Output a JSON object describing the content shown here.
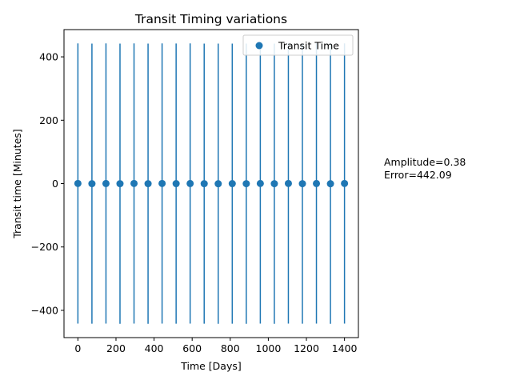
{
  "chart_data": {
    "type": "scatter",
    "title": "Transit Timing variations",
    "xlabel": "Time [Days]",
    "ylabel": "Transit time [Minutes]",
    "xlim": [
      -73,
      1473
    ],
    "ylim": [
      -486,
      486
    ],
    "xticks": [
      0,
      200,
      400,
      600,
      800,
      1000,
      1200,
      1400
    ],
    "yticks": [
      -400,
      -200,
      0,
      200,
      400
    ],
    "xtick_labels": [
      "0",
      "200",
      "400",
      "600",
      "800",
      "1000",
      "1200",
      "1400"
    ],
    "ytick_labels": [
      "−400",
      "−200",
      "0",
      "200",
      "400"
    ],
    "grid": false,
    "legend": {
      "position": "top-right",
      "entries": [
        "Transit Time"
      ]
    },
    "series": [
      {
        "name": "Transit Time",
        "color": "#1f77b4",
        "x": [
          0,
          73.68,
          147.37,
          221.05,
          294.74,
          368.42,
          442.11,
          515.79,
          589.47,
          663.16,
          736.84,
          810.53,
          884.21,
          957.89,
          1031.58,
          1105.26,
          1178.95,
          1252.63,
          1326.32,
          1400
        ],
        "y": [
          0.38,
          -0.2,
          0.3,
          -0.3,
          0.35,
          -0.25,
          0.38,
          -0.1,
          0.3,
          -0.2,
          -0.35,
          -0.15,
          -0.25,
          0.32,
          -0.3,
          0.36,
          -0.2,
          0.3,
          -0.34,
          0.38
        ],
        "yerr": 442.09
      }
    ]
  },
  "annotations": {
    "amplitude": "Amplitude=0.38",
    "error": "Error=442.09"
  }
}
